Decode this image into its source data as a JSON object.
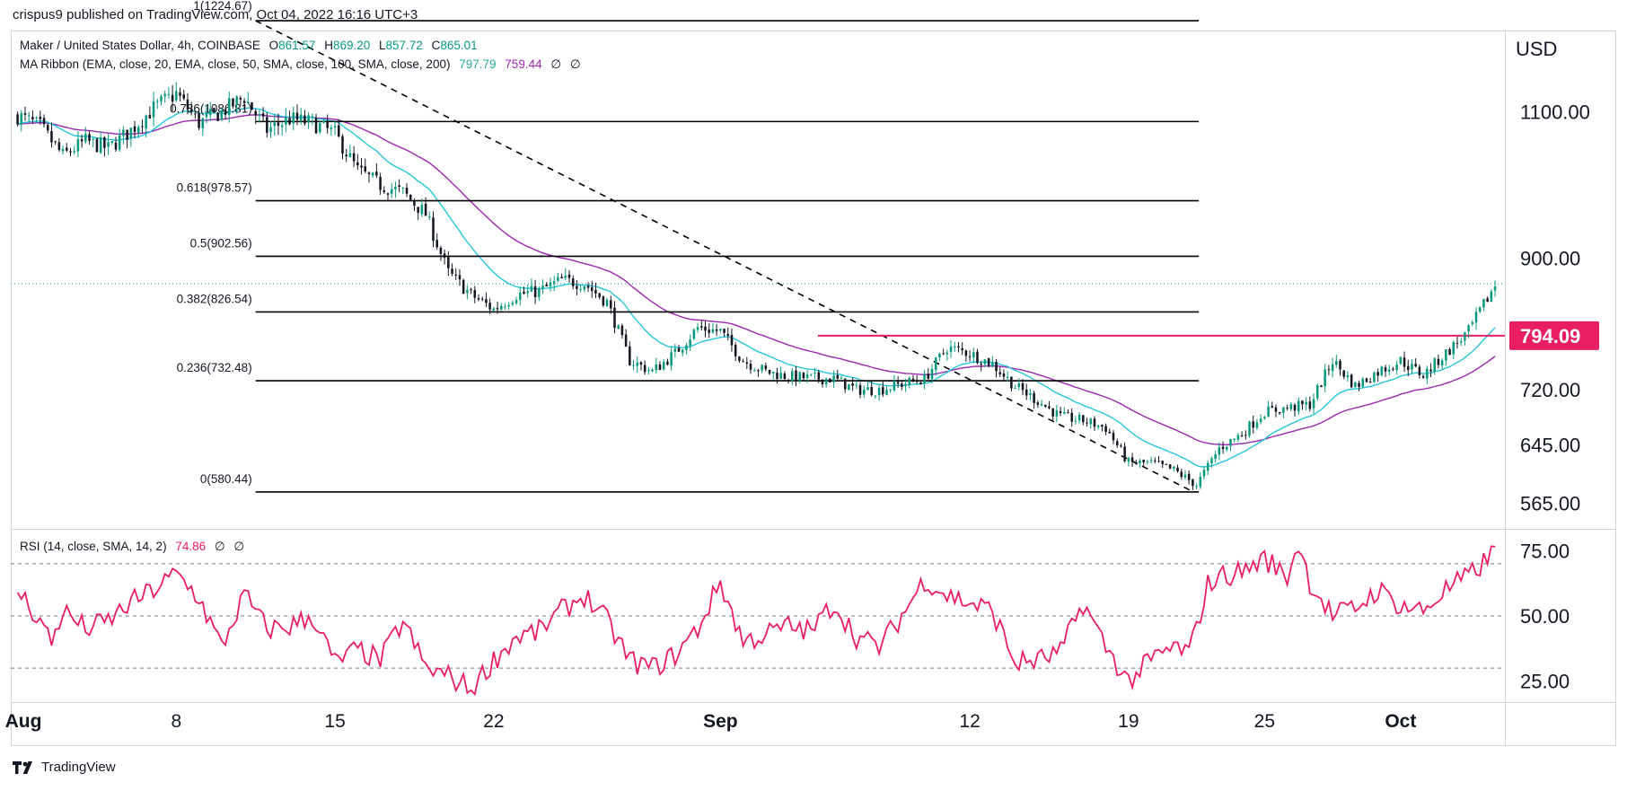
{
  "header": {
    "published_by": "crispus9 published on TradingView.com, Oct 04, 2022 16:16 UTC+3"
  },
  "symbol_legend": {
    "title": "Maker / United States Dollar, 4h, COINBASE",
    "open_label": "O",
    "open": "861.57",
    "high_label": "H",
    "high": "869.20",
    "low_label": "L",
    "low": "857.72",
    "close_label": "C",
    "close": "865.01"
  },
  "ma_legend": {
    "title": "MA Ribbon (EMA, close, 20, EMA, close, 50, SMA, close, 100, SMA, close, 200)",
    "ma1": "797.79",
    "ma2": "759.44",
    "na1": "∅",
    "na2": "∅"
  },
  "rsi_legend": {
    "title": "RSI (14, close, SMA, 14, 2)",
    "value": "74.86",
    "na1": "∅",
    "na2": "∅"
  },
  "footer": {
    "brand": "TradingView"
  },
  "colors": {
    "rsi_line": "#e91e63",
    "ema20": "#26c6da",
    "ema50": "#9c27b0",
    "bull": "#089981",
    "bear": "#131722",
    "resistance": "#e91e63",
    "last_price_dotted": "#089981"
  },
  "chart_data": [
    {
      "type": "candlestick",
      "title": "Maker / United States Dollar, 4h, COINBASE",
      "currency_label": "USD",
      "ylim": [
        530,
        1210
      ],
      "y_ticks": [
        "1100.00",
        "900.00",
        "720.00",
        "645.00",
        "565.00"
      ],
      "x_range_days": [
        -0.3,
        65.6
      ],
      "x_ticks": [
        {
          "label": "Aug",
          "day": 0,
          "bold": true
        },
        {
          "label": "8",
          "day": 7,
          "bold": false
        },
        {
          "label": "15",
          "day": 14,
          "bold": false
        },
        {
          "label": "22",
          "day": 21,
          "bold": false
        },
        {
          "label": "Sep",
          "day": 31,
          "bold": true
        },
        {
          "label": "12",
          "day": 42,
          "bold": false
        },
        {
          "label": "19",
          "day": 49,
          "bold": false
        },
        {
          "label": "25",
          "day": 55,
          "bold": false
        },
        {
          "label": "Oct",
          "day": 61,
          "bold": true
        }
      ],
      "closes_anchor_days": [
        0,
        1,
        2,
        3,
        4,
        5,
        6,
        7,
        8,
        9,
        10,
        11,
        12,
        13,
        14,
        15,
        16,
        17,
        18,
        19,
        20,
        21,
        22,
        23,
        24,
        25,
        26,
        27,
        28,
        29,
        30,
        31,
        32,
        33,
        34,
        35,
        36,
        37,
        38,
        39,
        40,
        41,
        42,
        43,
        44,
        45,
        46,
        47,
        48,
        49,
        50,
        51,
        52,
        53,
        54,
        55,
        56,
        57,
        58,
        59,
        60,
        61,
        62,
        63,
        64,
        65.2
      ],
      "closes_anchor_values": [
        1095,
        1080,
        1040,
        1060,
        1050,
        1075,
        1105,
        1125,
        1085,
        1100,
        1120,
        1075,
        1090,
        1085,
        1070,
        1020,
        1000,
        990,
        960,
        880,
        850,
        830,
        850,
        855,
        870,
        865,
        840,
        760,
        745,
        770,
        805,
        800,
        760,
        745,
        738,
        736,
        735,
        720,
        720,
        728,
        735,
        778,
        770,
        755,
        725,
        705,
        683,
        678,
        668,
        620,
        620,
        610,
        590,
        640,
        660,
        690,
        695,
        700,
        760,
        725,
        745,
        760,
        740,
        770,
        800,
        865
      ],
      "last_price": 865.01,
      "resistance_level": {
        "label": "794.09",
        "value": 794.09,
        "from_day": 35.3,
        "to_day": 65.6
      },
      "fibonacci_levels": [
        {
          "label": "0.786(1086.81)",
          "value": 1086.81
        },
        {
          "label": "0.618(978.57)",
          "value": 978.57
        },
        {
          "label": "0.5(902.56)",
          "value": 902.56
        },
        {
          "label": "0.382(826.54)",
          "value": 826.54
        },
        {
          "label": "0.236(732.48)",
          "value": 732.48
        },
        {
          "label": "0(580.44)",
          "value": 580.44
        }
      ],
      "fibonacci_top": {
        "label": "1(1224.67)",
        "value": 1224.67
      },
      "fibonacci_span_days": [
        10.5,
        52.1
      ],
      "trendline": {
        "from_day": 10.5,
        "from_value": 1224.67,
        "to_day": 51.7,
        "to_value": 583
      }
    },
    {
      "type": "line",
      "title": "RSI (14, close, SMA, 14, 2)",
      "ylim": [
        17,
        83
      ],
      "y_ticks": [
        "75.00",
        "50.00",
        "25.00"
      ],
      "bands": [
        70,
        50,
        30
      ],
      "last_value": 74.86,
      "anchor_days": [
        0,
        1,
        1.5,
        2,
        3,
        4,
        5,
        6,
        7,
        8,
        9,
        10,
        11,
        12,
        13,
        14,
        15,
        16,
        17,
        18,
        19,
        20,
        21,
        22,
        23,
        24,
        25,
        26,
        27,
        28,
        29,
        30,
        31,
        32,
        33,
        34,
        35,
        36,
        37,
        38,
        39,
        40,
        41,
        42,
        43,
        44,
        45,
        46,
        47,
        48,
        49,
        50,
        51,
        51.7,
        52.5,
        53,
        54,
        55,
        56,
        56.5,
        57,
        58,
        59,
        60,
        61,
        62,
        63,
        64,
        65.2
      ],
      "anchor_values": [
        60,
        48,
        40,
        52,
        45,
        48,
        55,
        60,
        66,
        57,
        38,
        58,
        45,
        46,
        50,
        32,
        37,
        33,
        48,
        30,
        27,
        22,
        33,
        42,
        44,
        52,
        58,
        48,
        33,
        30,
        35,
        45,
        63,
        40,
        43,
        46,
        44,
        55,
        42,
        38,
        50,
        64,
        58,
        55,
        52,
        32,
        33,
        36,
        55,
        38,
        25,
        33,
        38,
        36,
        62,
        65,
        67,
        72,
        65,
        78,
        63,
        50,
        53,
        60,
        54,
        52,
        60,
        65,
        74.86
      ]
    }
  ]
}
